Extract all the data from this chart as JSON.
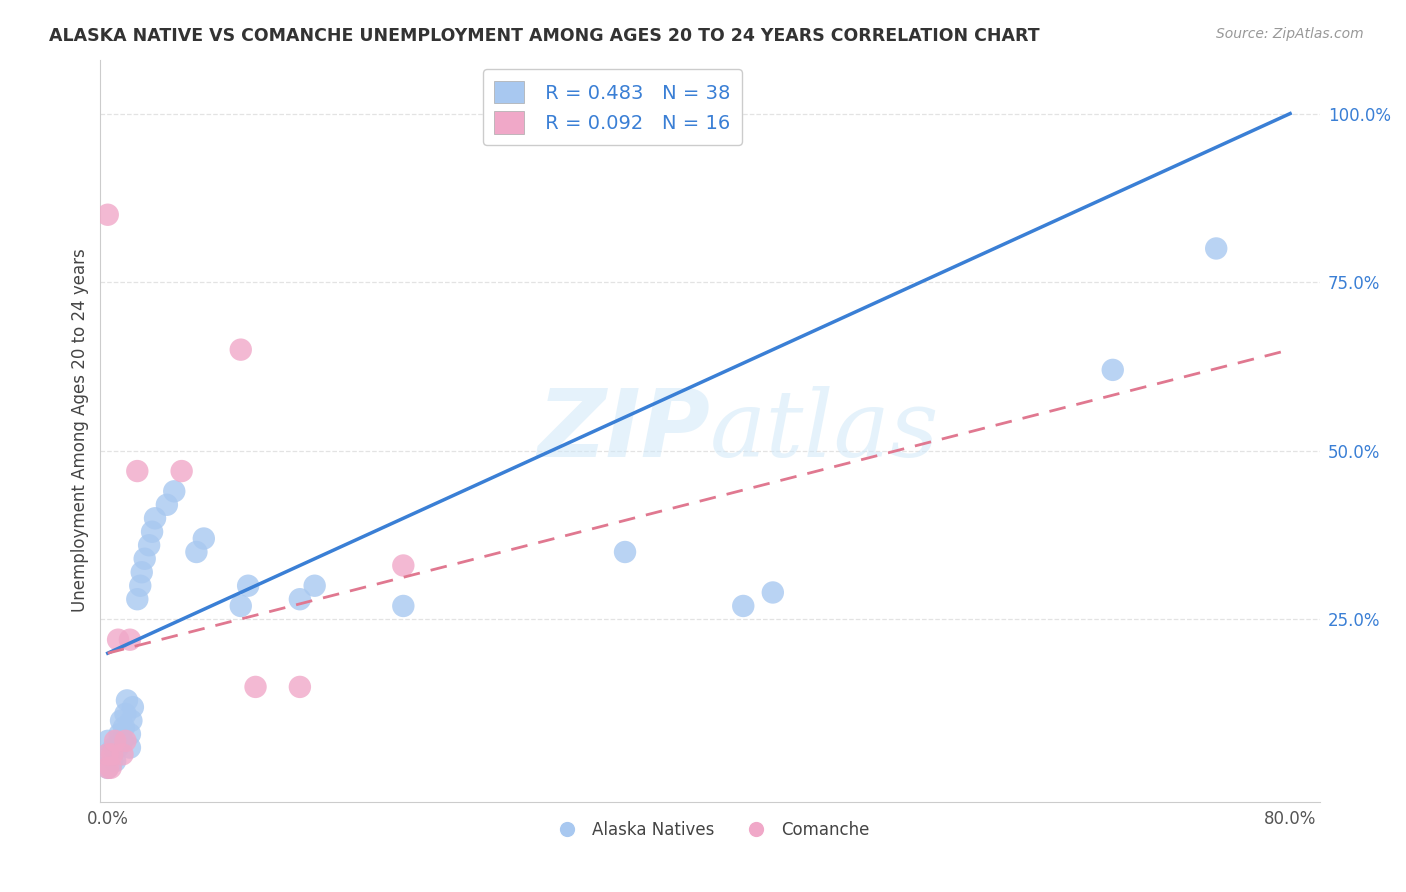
{
  "title": "ALASKA NATIVE VS COMANCHE UNEMPLOYMENT AMONG AGES 20 TO 24 YEARS CORRELATION CHART",
  "source": "Source: ZipAtlas.com",
  "ylabel": "Unemployment Among Ages 20 to 24 years",
  "xlim": [
    -0.005,
    0.82
  ],
  "ylim": [
    -0.02,
    1.08
  ],
  "xticks": [
    0.0,
    0.2,
    0.4,
    0.6,
    0.8
  ],
  "xticklabels": [
    "0.0%",
    "",
    "",
    "",
    "80.0%"
  ],
  "yticks": [
    0.0,
    0.25,
    0.5,
    0.75,
    1.0
  ],
  "yticklabels": [
    "",
    "25.0%",
    "50.0%",
    "75.0%",
    "100.0%"
  ],
  "alaska_R": 0.483,
  "alaska_N": 38,
  "comanche_R": 0.092,
  "comanche_N": 16,
  "alaska_color": "#a8c8f0",
  "comanche_color": "#f0a8c8",
  "alaska_line_color": "#3a7fd5",
  "comanche_line_color": "#e07890",
  "alaska_line_x0": 0.0,
  "alaska_line_y0": 0.2,
  "alaska_line_x1": 0.8,
  "alaska_line_y1": 1.0,
  "comanche_line_x0": 0.0,
  "comanche_line_y0": 0.2,
  "comanche_line_x1": 0.8,
  "comanche_line_y1": 0.65,
  "alaska_x": [
    0.0,
    0.0,
    0.0,
    0.003,
    0.004,
    0.005,
    0.007,
    0.008,
    0.009,
    0.01,
    0.011,
    0.012,
    0.013,
    0.015,
    0.015,
    0.016,
    0.017,
    0.02,
    0.022,
    0.023,
    0.025,
    0.028,
    0.03,
    0.032,
    0.04,
    0.045,
    0.06,
    0.065,
    0.09,
    0.095,
    0.13,
    0.14,
    0.2,
    0.35,
    0.43,
    0.45,
    0.68,
    0.75
  ],
  "alaska_y": [
    0.03,
    0.05,
    0.07,
    0.04,
    0.06,
    0.04,
    0.06,
    0.08,
    0.1,
    0.07,
    0.09,
    0.11,
    0.13,
    0.06,
    0.08,
    0.1,
    0.12,
    0.28,
    0.3,
    0.32,
    0.34,
    0.36,
    0.38,
    0.4,
    0.42,
    0.44,
    0.35,
    0.37,
    0.27,
    0.3,
    0.28,
    0.3,
    0.27,
    0.35,
    0.27,
    0.29,
    0.62,
    0.8
  ],
  "comanche_x": [
    0.0,
    0.0,
    0.0,
    0.002,
    0.003,
    0.005,
    0.007,
    0.01,
    0.012,
    0.015,
    0.02,
    0.05,
    0.09,
    0.1,
    0.13,
    0.2
  ],
  "comanche_y": [
    0.03,
    0.05,
    0.85,
    0.03,
    0.05,
    0.07,
    0.22,
    0.05,
    0.07,
    0.22,
    0.47,
    0.47,
    0.65,
    0.15,
    0.15,
    0.33
  ],
  "watermark_zip": "ZIP",
  "watermark_atlas": "atlas",
  "background_color": "#ffffff",
  "grid_color": "#dddddd",
  "ytick_color": "#3a7fd5",
  "xtick_color": "#555555"
}
